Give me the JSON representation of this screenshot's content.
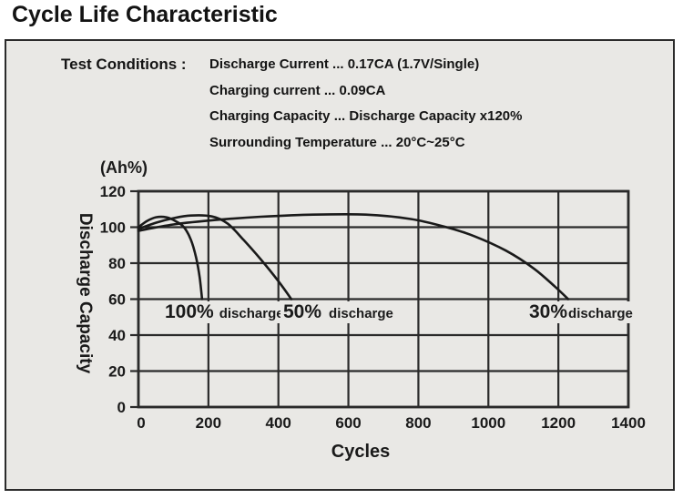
{
  "page": {
    "title": "Cycle Life Characteristic"
  },
  "test_conditions": {
    "label": "Test Conditions :",
    "lines": [
      "Discharge Current ... 0.17CA (1.7V/Single)",
      "Charging current ... 0.09CA",
      "Charging Capacity ... Discharge Capacity x120%",
      "Surrounding Temperature ... 20°C~25°C"
    ]
  },
  "chart_data": {
    "type": "line",
    "xlabel": "Cycles",
    "ylabel": "Discharge Capacity",
    "y_unit_label": "(Ah%)",
    "xlim": [
      0,
      1400
    ],
    "ylim": [
      0,
      120
    ],
    "x_ticks": [
      0,
      200,
      400,
      600,
      800,
      1000,
      1200,
      1400
    ],
    "y_ticks": [
      0,
      20,
      40,
      60,
      80,
      100,
      120
    ],
    "grid": true,
    "legend_position": "inside-plot",
    "colors": {
      "line": "#1a1a1a",
      "grid": "#2a2a2a",
      "background": "#e9e8e5",
      "text": "#1a1a1a"
    },
    "series": [
      {
        "name": "100% discharge",
        "label_pct": "100%",
        "label_word": "discharge",
        "points": [
          [
            0,
            100
          ],
          [
            25,
            103.5
          ],
          [
            50,
            105.5
          ],
          [
            80,
            105.5
          ],
          [
            105,
            103.5
          ],
          [
            130,
            100
          ],
          [
            150,
            93
          ],
          [
            165,
            83
          ],
          [
            175,
            72
          ],
          [
            182,
            60
          ]
        ]
      },
      {
        "name": "50% discharge",
        "label_pct": "50%",
        "label_word": "discharge",
        "points": [
          [
            0,
            99
          ],
          [
            50,
            102.5
          ],
          [
            100,
            105
          ],
          [
            150,
            106.5
          ],
          [
            210,
            106
          ],
          [
            255,
            102
          ],
          [
            300,
            93
          ],
          [
            350,
            82
          ],
          [
            400,
            70
          ],
          [
            437,
            60
          ]
        ]
      },
      {
        "name": "30% discharge",
        "label_pct": "30%",
        "label_word": "discharge",
        "points": [
          [
            0,
            98
          ],
          [
            100,
            101.5
          ],
          [
            220,
            104
          ],
          [
            350,
            105.8
          ],
          [
            500,
            107
          ],
          [
            650,
            107
          ],
          [
            780,
            104.5
          ],
          [
            880,
            100
          ],
          [
            960,
            95
          ],
          [
            1050,
            87
          ],
          [
            1130,
            77
          ],
          [
            1190,
            67
          ],
          [
            1228,
            60
          ]
        ]
      }
    ]
  }
}
